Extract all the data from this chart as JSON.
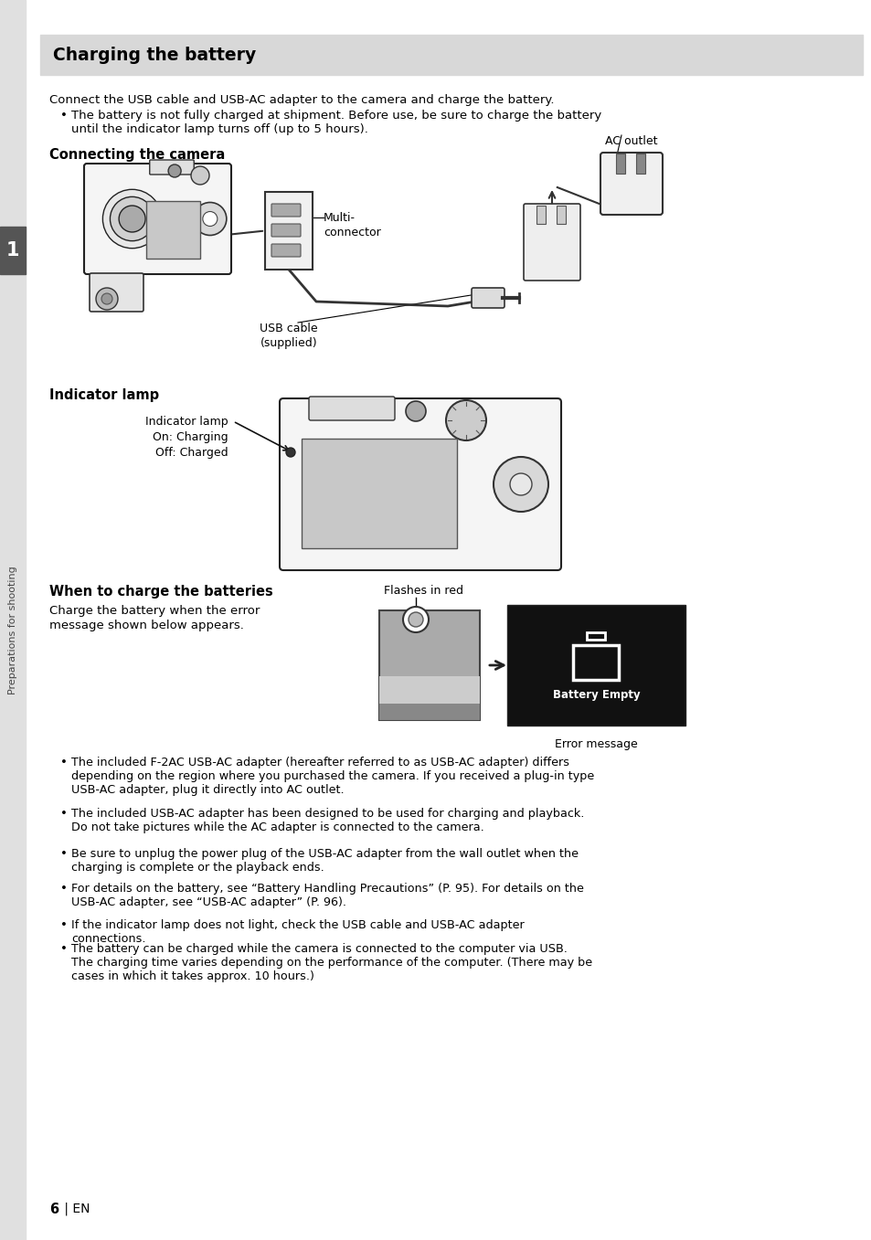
{
  "title": "Charging the battery",
  "title_bg": "#dcdcdc",
  "bg_color": "#ffffff",
  "text_color": "#000000",
  "intro_text": "Connect the USB cable and USB-AC adapter to the camera and charge the battery.",
  "bullet1": "The battery is not fully charged at shipment. Before use, be sure to charge the battery\nuntil the indicator lamp turns off (up to 5 hours).",
  "section1": "Connecting the camera",
  "label_ac": "AC outlet",
  "label_multi": "Multi-\nconnector",
  "label_usb": "USB cable\n(supplied)",
  "section2": "Indicator lamp",
  "label_ind": "Indicator lamp\nOn: Charging\nOff: Charged",
  "section3": "When to charge the batteries",
  "section3_text": "Charge the battery when the error\nmessage shown below appears.",
  "label_flash": "Flashes in red",
  "label_error": "Error message",
  "label_battery_empty": "Battery Empty",
  "bullets": [
    "The included F-2AC USB-AC adapter (hereafter referred to as USB-AC adapter) differs\ndepending on the region where you purchased the camera. If you received a plug-in type\nUSB-AC adapter, plug it directly into AC outlet.",
    "The included USB-AC adapter has been designed to be used for charging and playback.\nDo not take pictures while the AC adapter is connected to the camera.",
    "Be sure to unplug the power plug of the USB-AC adapter from the wall outlet when the\ncharging is complete or the playback ends.",
    "For details on the battery, see “Battery Handling Precautions” (P. 95). For details on the\nUSB-AC adapter, see “USB-AC adapter” (P. 96).",
    "If the indicator lamp does not light, check the USB cable and USB-AC adapter\nconnections.",
    "The battery can be charged while the camera is connected to the computer via USB.\nThe charging time varies depending on the performance of the computer. (There may be\ncases in which it takes approx. 10 hours.)"
  ],
  "page_number": "6",
  "sidebar_text": "Preparations for shooting",
  "sidebar_number": "1",
  "sidebar_bg": "#555555"
}
